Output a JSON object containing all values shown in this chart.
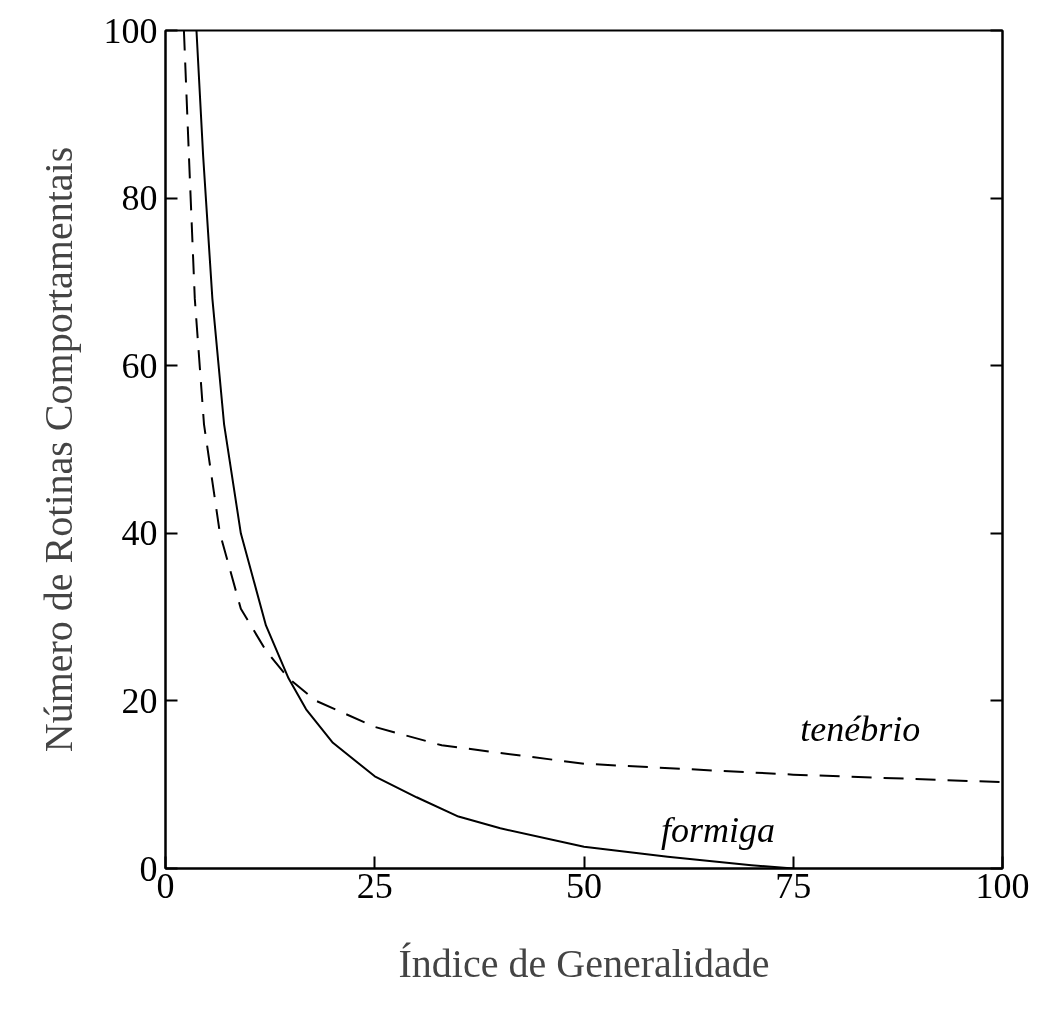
{
  "chart_data": {
    "type": "line",
    "xlabel": "Índice de Generalidade",
    "ylabel": "Número de Rotinas Comportamentais",
    "xlim": [
      0,
      100
    ],
    "ylim": [
      0,
      100
    ],
    "xticks": [
      0,
      25,
      50,
      75,
      100
    ],
    "yticks": [
      0,
      20,
      40,
      60,
      80,
      100
    ],
    "grid": false,
    "legend": false,
    "series": [
      {
        "name": "formiga",
        "color": "#000000",
        "line_style": "solid",
        "x": [
          3.7,
          4.5,
          5.6,
          7,
          9,
          12,
          14.7,
          16.8,
          20,
          25,
          30,
          35,
          40,
          50,
          60,
          70,
          75
        ],
        "values": [
          100,
          85,
          68,
          53,
          40,
          29,
          22.7,
          19,
          15,
          11,
          8.5,
          6.2,
          4.8,
          2.6,
          1.4,
          0.4,
          0
        ]
      },
      {
        "name": "tenébrio",
        "color": "#000000",
        "line_style": "dashed",
        "x": [
          2.2,
          2.8,
          3.5,
          4.6,
          6.5,
          9,
          12,
          14.7,
          18,
          25,
          33,
          50,
          75,
          100
        ],
        "values": [
          100,
          85,
          68,
          53,
          40,
          31,
          26,
          22.7,
          20,
          16.9,
          14.7,
          12.5,
          11.2,
          10.3
        ]
      }
    ]
  }
}
